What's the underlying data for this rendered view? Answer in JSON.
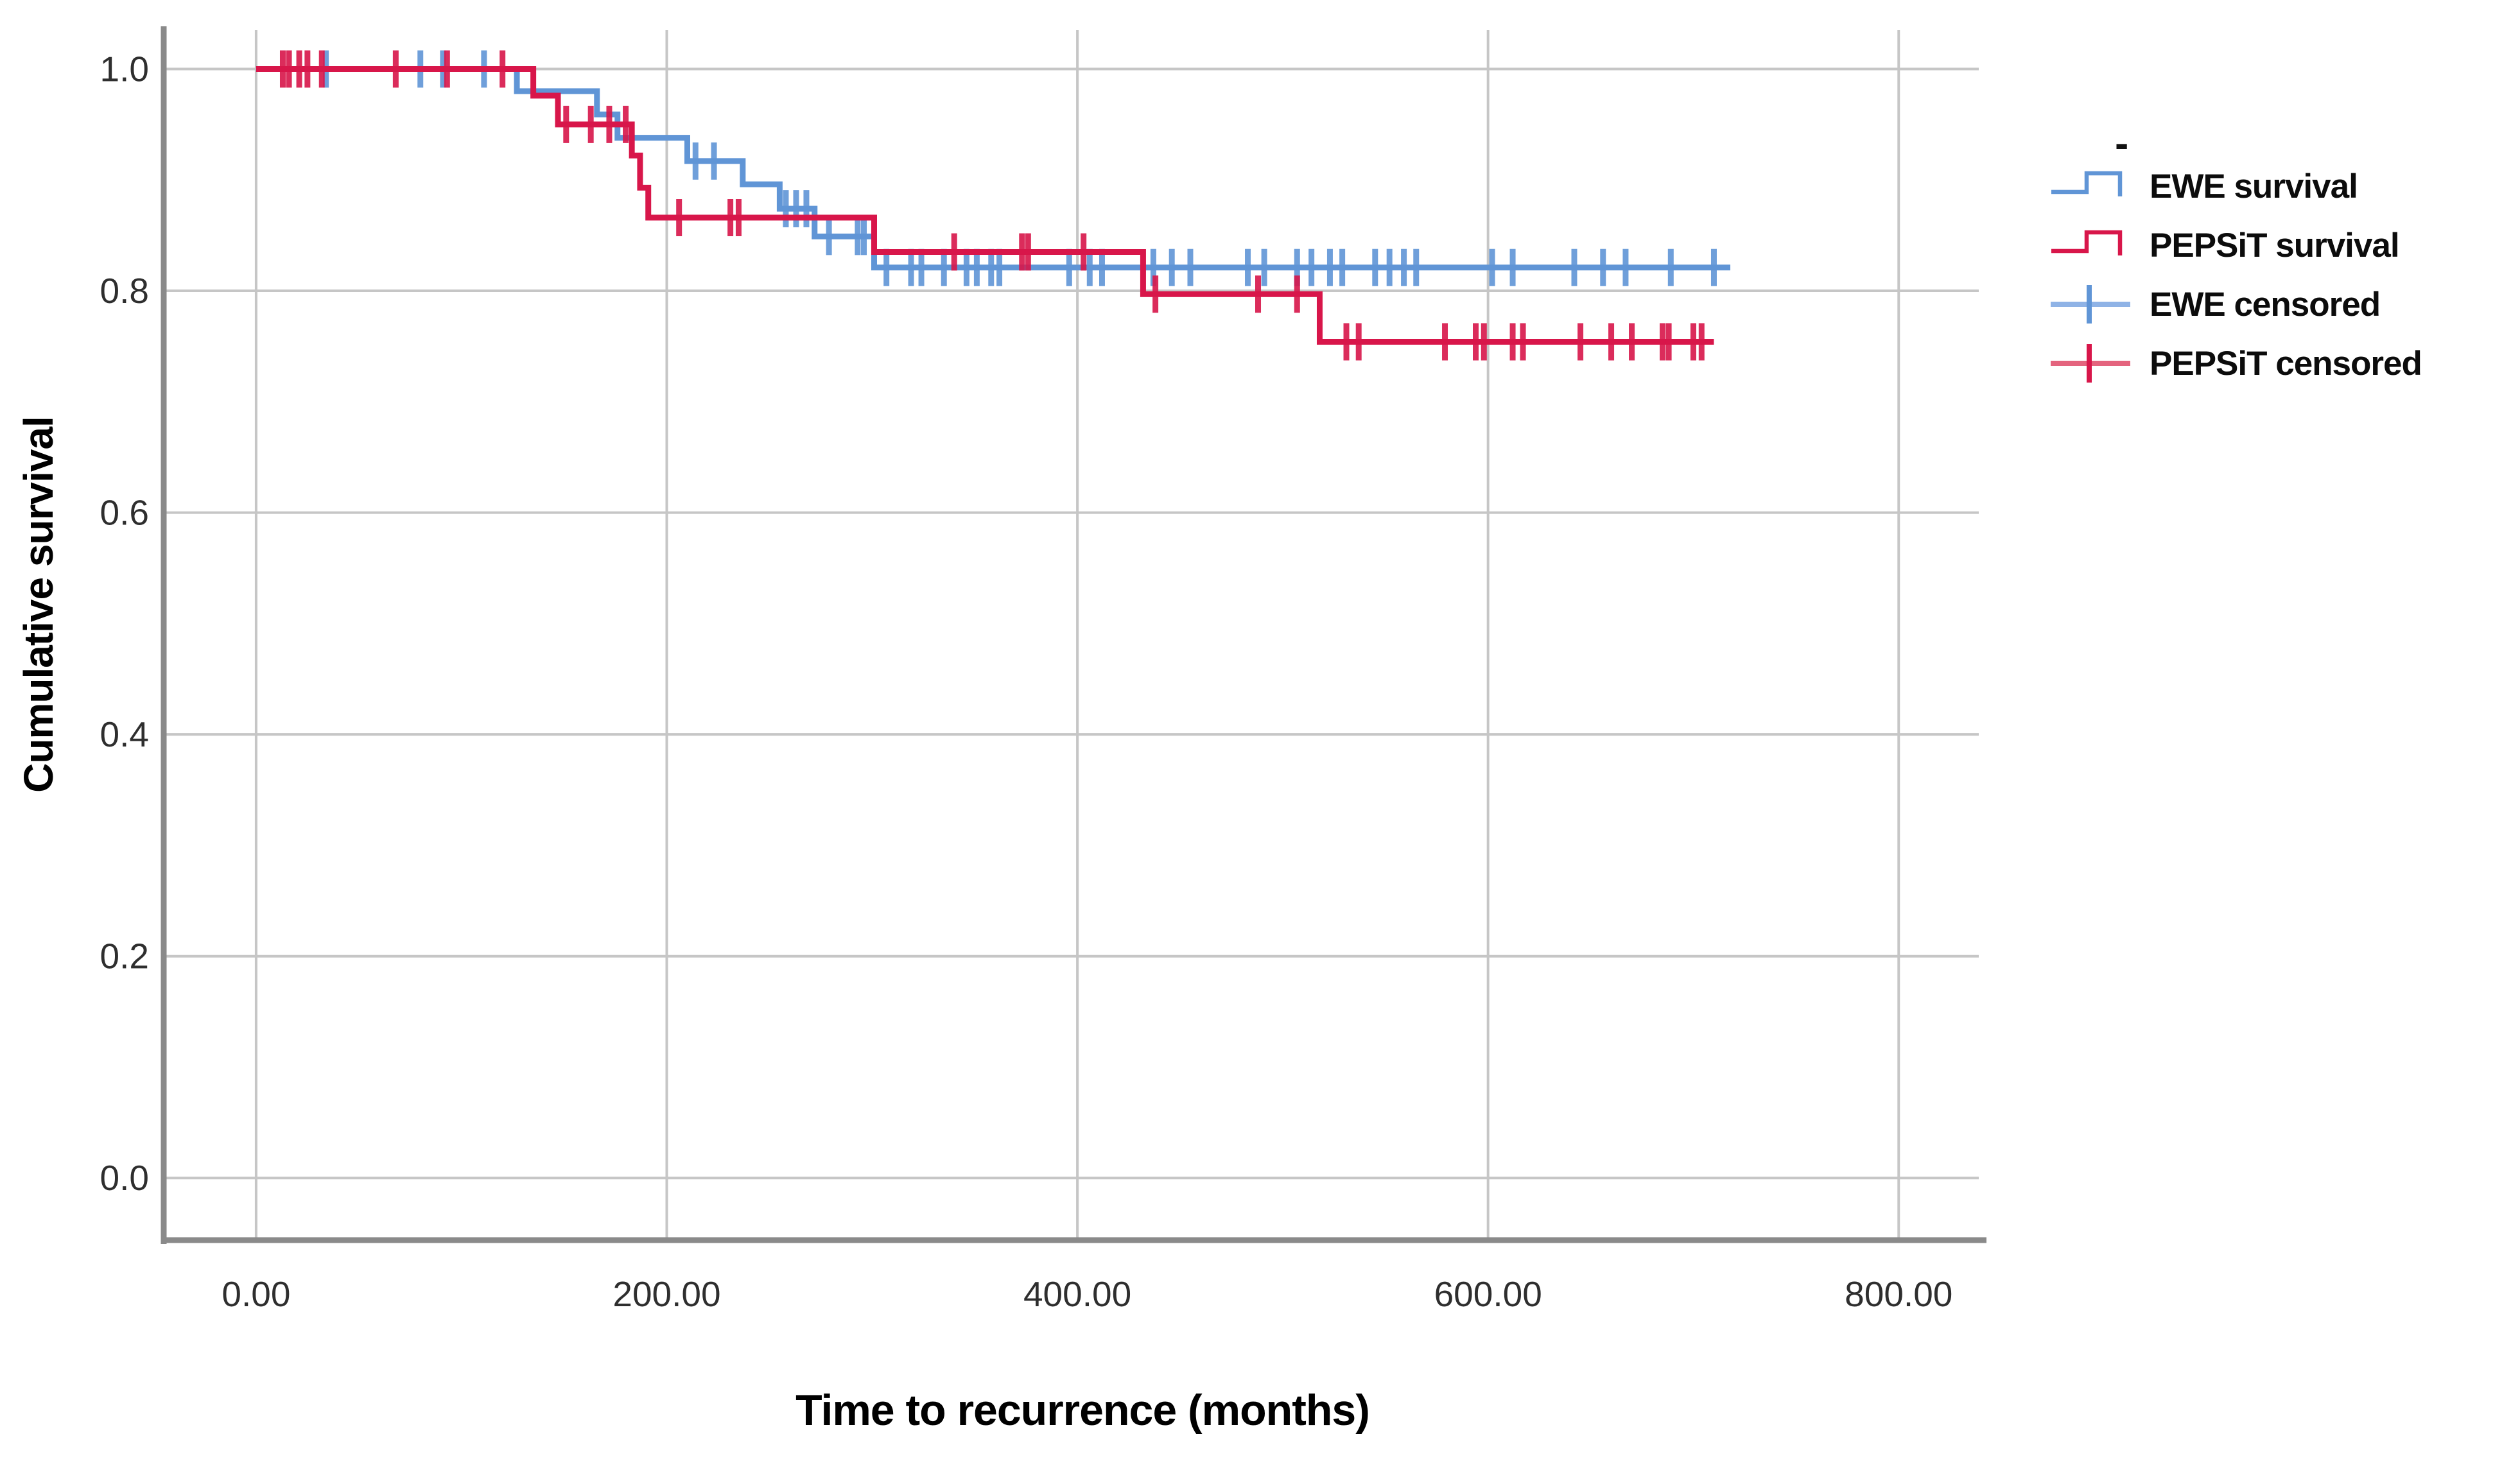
{
  "figure": {
    "background": "#ffffff"
  },
  "chart_data": {
    "type": "line",
    "subtype": "kaplan_meier_step_plot",
    "title": "",
    "xlabel": "Time to recurrence (months)",
    "ylabel": "Cumulative survival",
    "xlim": [
      -45,
      839
    ],
    "ylim": [
      -0.056,
      1.035
    ],
    "grid": true,
    "legend_position": "right",
    "x_ticks": {
      "values": [
        0,
        200,
        400,
        600,
        800
      ],
      "labels": [
        "0.00",
        "200.00",
        "400.00",
        "600.00",
        "800.00"
      ]
    },
    "y_ticks": {
      "values": [
        0.0,
        0.2,
        0.4,
        0.6,
        0.8,
        1.0
      ],
      "labels": [
        "0.0",
        "0.2",
        "0.4",
        "0.6",
        "0.8",
        "1.0"
      ]
    },
    "colors": {
      "ewe": "#6095d6",
      "pepsit": "#d8164a",
      "ewe_light": "#8fb3e6",
      "pepsit_light": "#e4647e",
      "grid": "#c6c6c6",
      "axis": "#8a8a8a",
      "tick_text": "#2e2e2e"
    },
    "series": [
      {
        "name": "EWE survival",
        "color_key": "ewe",
        "steps": [
          [
            0,
            1.0
          ],
          [
            127,
            0.98
          ],
          [
            166,
            0.959
          ],
          [
            176,
            0.938
          ],
          [
            210,
            0.917
          ],
          [
            237,
            0.896
          ],
          [
            255,
            0.874
          ],
          [
            272,
            0.849
          ],
          [
            301,
            0.821
          ]
        ],
        "end_time": 718,
        "censored": [
          [
            34,
            1.0
          ],
          [
            80,
            1.0
          ],
          [
            91,
            1.0
          ],
          [
            111,
            1.0
          ],
          [
            214,
            0.917
          ],
          [
            223,
            0.917
          ],
          [
            258,
            0.874
          ],
          [
            263,
            0.874
          ],
          [
            268,
            0.874
          ],
          [
            279,
            0.849
          ],
          [
            293,
            0.849
          ],
          [
            296,
            0.849
          ],
          [
            307,
            0.821
          ],
          [
            319,
            0.821
          ],
          [
            324,
            0.821
          ],
          [
            335,
            0.821
          ],
          [
            346,
            0.821
          ],
          [
            351,
            0.821
          ],
          [
            358,
            0.821
          ],
          [
            362,
            0.821
          ],
          [
            396,
            0.821
          ],
          [
            406,
            0.821
          ],
          [
            412,
            0.821
          ],
          [
            437,
            0.821
          ],
          [
            446,
            0.821
          ],
          [
            455,
            0.821
          ],
          [
            483,
            0.821
          ],
          [
            491,
            0.821
          ],
          [
            507,
            0.821
          ],
          [
            514,
            0.821
          ],
          [
            523,
            0.821
          ],
          [
            529,
            0.821
          ],
          [
            545,
            0.821
          ],
          [
            552,
            0.821
          ],
          [
            559,
            0.821
          ],
          [
            565,
            0.821
          ],
          [
            602,
            0.821
          ],
          [
            612,
            0.821
          ],
          [
            642,
            0.821
          ],
          [
            656,
            0.821
          ],
          [
            667,
            0.821
          ],
          [
            689,
            0.821
          ],
          [
            710,
            0.821
          ]
        ]
      },
      {
        "name": "PEPSiT survival",
        "color_key": "pepsit",
        "steps": [
          [
            0,
            1.0
          ],
          [
            135,
            0.976
          ],
          [
            147,
            0.95
          ],
          [
            183,
            0.922
          ],
          [
            187,
            0.893
          ],
          [
            191,
            0.866
          ],
          [
            301,
            0.835
          ],
          [
            432,
            0.797
          ],
          [
            518,
            0.754
          ]
        ],
        "end_time": 710,
        "censored": [
          [
            13,
            1.0
          ],
          [
            16,
            1.0
          ],
          [
            21,
            1.0
          ],
          [
            25,
            1.0
          ],
          [
            32,
            1.0
          ],
          [
            68,
            1.0
          ],
          [
            93,
            1.0
          ],
          [
            120,
            1.0
          ],
          [
            151,
            0.95
          ],
          [
            163,
            0.95
          ],
          [
            172,
            0.95
          ],
          [
            180,
            0.95
          ],
          [
            206,
            0.866
          ],
          [
            231,
            0.866
          ],
          [
            235,
            0.866
          ],
          [
            340,
            0.835
          ],
          [
            373,
            0.835
          ],
          [
            376,
            0.835
          ],
          [
            403,
            0.835
          ],
          [
            438,
            0.797
          ],
          [
            488,
            0.797
          ],
          [
            507,
            0.797
          ],
          [
            531,
            0.754
          ],
          [
            537,
            0.754
          ],
          [
            579,
            0.754
          ],
          [
            594,
            0.754
          ],
          [
            598,
            0.754
          ],
          [
            612,
            0.754
          ],
          [
            617,
            0.754
          ],
          [
            645,
            0.754
          ],
          [
            660,
            0.754
          ],
          [
            670,
            0.754
          ],
          [
            685,
            0.754
          ],
          [
            688,
            0.754
          ],
          [
            700,
            0.754
          ],
          [
            704,
            0.754
          ]
        ]
      }
    ],
    "legend": {
      "title": "-",
      "entries": [
        {
          "label": "EWE survival",
          "marker": "step",
          "color_key": "ewe"
        },
        {
          "label": "PEPSiT survival",
          "marker": "step",
          "color_key": "pepsit"
        },
        {
          "label": "EWE censored",
          "marker": "plus",
          "color_key": "ewe",
          "light_key": "ewe_light"
        },
        {
          "label": "PEPSiT censored",
          "marker": "plus",
          "color_key": "pepsit",
          "light_key": "pepsit_light"
        }
      ]
    }
  }
}
